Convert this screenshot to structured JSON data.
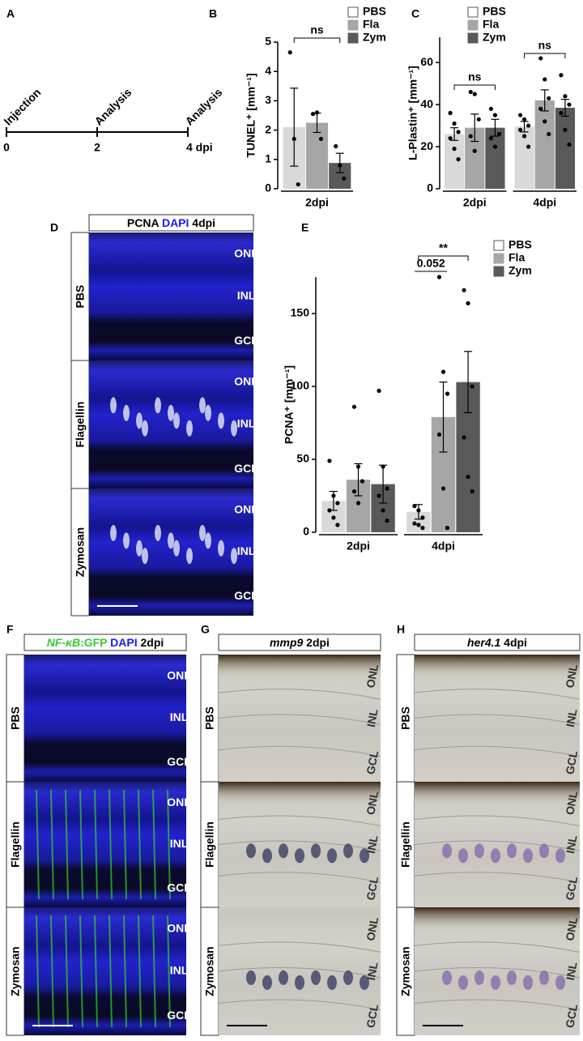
{
  "panel_labels": [
    "A",
    "B",
    "C",
    "D",
    "E",
    "F",
    "G",
    "H"
  ],
  "timeline": {
    "events": [
      "Injection",
      "Analysis",
      "Analysis"
    ],
    "ticks": [
      "0",
      "2",
      "4 dpi"
    ]
  },
  "chart_data": [
    {
      "type": "bar",
      "y_label": "TUNEL⁺ [mm⁻¹]",
      "categories": [
        "2dpi"
      ],
      "ylim": [
        0,
        5
      ],
      "yticks": [
        0,
        1,
        2,
        3,
        4,
        5
      ],
      "series": [
        {
          "name": "PBS",
          "color": "#d9d9d9",
          "values": [
            2.1
          ],
          "errors": [
            1.33
          ],
          "points": [
            [
              4.65,
              1.7,
              0.15
            ]
          ]
        },
        {
          "name": "Fla",
          "color": "#a6a6a6",
          "values": [
            2.25
          ],
          "errors": [
            0.33
          ],
          "points": [
            [
              2.55,
              2.6,
              1.7
            ]
          ]
        },
        {
          "name": "Zym",
          "color": "#595959",
          "values": [
            0.88
          ],
          "errors": [
            0.33
          ],
          "points": [
            [
              1.45,
              0.8,
              0.35
            ]
          ]
        }
      ],
      "annotations": [
        "ns"
      ]
    },
    {
      "type": "bar",
      "y_label": "L-Plastin⁺ [mm⁻¹]",
      "categories": [
        "2dpi",
        "4dpi"
      ],
      "ylim": [
        0,
        72
      ],
      "yticks": [
        0,
        20,
        40,
        60
      ],
      "series": [
        {
          "name": "PBS",
          "color": "#d9d9d9",
          "values": [
            26,
            29.5
          ],
          "errors": [
            3,
            2.5
          ],
          "points": [
            [
              36,
              31,
              27,
              24,
              19,
              14
            ],
            [
              35,
              33,
              30,
              28,
              25,
              20
            ]
          ]
        },
        {
          "name": "Fla",
          "color": "#a6a6a6",
          "values": [
            29,
            42
          ],
          "errors": [
            6.5,
            5
          ],
          "points": [
            [
              46,
              45,
              33,
              25,
              18
            ],
            [
              62,
              52,
              43,
              38,
              32,
              26
            ]
          ]
        },
        {
          "name": "Zym",
          "color": "#595959",
          "values": [
            29,
            38.5
          ],
          "errors": [
            4,
            4
          ],
          "points": [
            [
              38,
              35,
              26,
              24,
              20
            ],
            [
              54,
              44,
              40,
              36,
              28,
              21
            ]
          ]
        }
      ],
      "annotations": [
        "ns",
        "ns"
      ]
    },
    {
      "type": "bar",
      "y_label": "PCNA⁺ [mm⁻¹]",
      "categories": [
        "2dpi",
        "4dpi"
      ],
      "ylim": [
        0,
        175
      ],
      "yticks": [
        0,
        50,
        100,
        150
      ],
      "series": [
        {
          "name": "PBS",
          "color": "#d9d9d9",
          "values": [
            21.5,
            14
          ],
          "errors": [
            6.5,
            5
          ],
          "points": [
            [
              49,
              25,
              20,
              15,
              10,
              5
            ],
            [
              18,
              15,
              10,
              6,
              5,
              3
            ]
          ]
        },
        {
          "name": "Fla",
          "color": "#a6a6a6",
          "values": [
            36,
            79
          ],
          "errors": [
            11,
            24
          ],
          "points": [
            [
              86,
              45,
              35,
              28,
              20
            ],
            [
              175,
              110,
              95,
              67,
              30,
              3
            ]
          ]
        },
        {
          "name": "Zym",
          "color": "#595959",
          "values": [
            33,
            103
          ],
          "errors": [
            13,
            21
          ],
          "points": [
            [
              97,
              45,
              30,
              25,
              15,
              8
            ],
            [
              166,
              157,
              100,
              65,
              38,
              28
            ]
          ]
        }
      ],
      "annotations": [
        "**",
        "0.052"
      ]
    }
  ],
  "micrographs": [
    {
      "header": [
        {
          "text": "PCNA ",
          "color": "#000000"
        },
        {
          "text": "DAPI ",
          "color": "#1a1aff"
        },
        {
          "text": "4dpi",
          "color": "#000000"
        }
      ],
      "rows": [
        "PBS",
        "Flagellin",
        "Zymosan"
      ],
      "layers": [
        "ONL",
        "INL",
        "GCL"
      ]
    },
    {
      "header": [
        {
          "text": "NF-κB",
          "color": "#33cc33",
          "italic": true
        },
        {
          "text": ":GFP ",
          "color": "#33cc33"
        },
        {
          "text": "DAPI ",
          "color": "#1a1aff"
        },
        {
          "text": "2dpi",
          "color": "#000000"
        }
      ],
      "rows": [
        "PBS",
        "Flagellin",
        "Zymosan"
      ],
      "layers": [
        "ONL",
        "INL",
        "GCL"
      ]
    },
    {
      "header": [
        {
          "text": "mmp9",
          "color": "#000000",
          "italic": true
        },
        {
          "text": " 2dpi",
          "color": "#000000"
        }
      ],
      "rows": [
        "PBS",
        "Flagellin",
        "Zymosan"
      ],
      "layers": [
        "ONL",
        "INL",
        "GCL"
      ]
    },
    {
      "header": [
        {
          "text": "her4.1",
          "color": "#000000",
          "italic": true
        },
        {
          "text": " 4dpi",
          "color": "#000000"
        }
      ],
      "rows": [
        "PBS",
        "Flagellin",
        "Zymosan"
      ],
      "layers": [
        "ONL",
        "INL",
        "GCL"
      ]
    }
  ]
}
